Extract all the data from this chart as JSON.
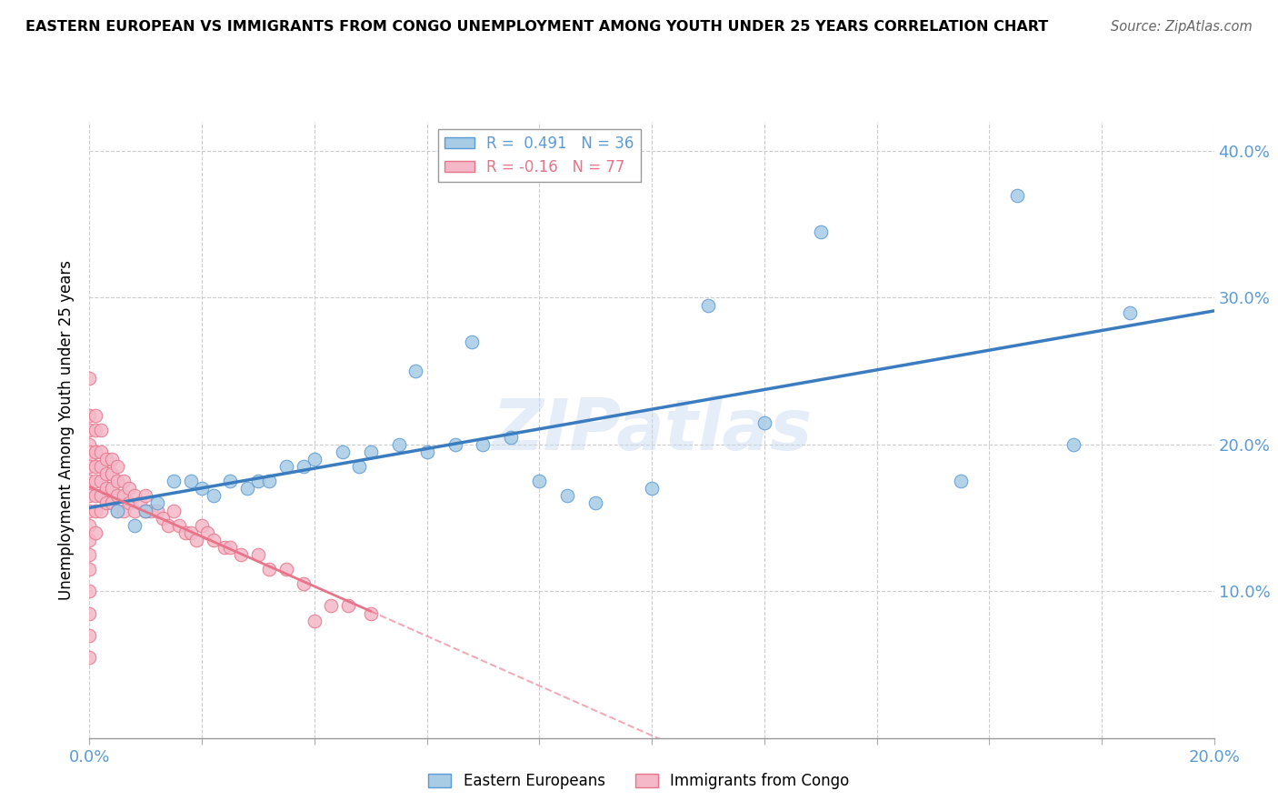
{
  "title": "EASTERN EUROPEAN VS IMMIGRANTS FROM CONGO UNEMPLOYMENT AMONG YOUTH UNDER 25 YEARS CORRELATION CHART",
  "source": "Source: ZipAtlas.com",
  "ylabel": "Unemployment Among Youth under 25 years",
  "xlim": [
    0.0,
    0.2
  ],
  "ylim": [
    0.0,
    0.42
  ],
  "blue_R": 0.491,
  "blue_N": 36,
  "pink_R": -0.16,
  "pink_N": 77,
  "blue_color": "#a8cce4",
  "pink_color": "#f4b8c8",
  "blue_edge_color": "#5b9bd5",
  "pink_edge_color": "#e8748a",
  "blue_line_color": "#3a7cbf",
  "pink_line_color": "#e8748a",
  "watermark": "ZIPatlas",
  "tick_color": "#5b9bd5",
  "blue_scatter_x": [
    0.005,
    0.008,
    0.01,
    0.012,
    0.015,
    0.018,
    0.02,
    0.022,
    0.025,
    0.028,
    0.03,
    0.032,
    0.035,
    0.038,
    0.04,
    0.045,
    0.048,
    0.05,
    0.055,
    0.058,
    0.06,
    0.065,
    0.068,
    0.07,
    0.075,
    0.08,
    0.085,
    0.09,
    0.1,
    0.11,
    0.12,
    0.13,
    0.155,
    0.165,
    0.175,
    0.185
  ],
  "blue_scatter_y": [
    0.155,
    0.145,
    0.155,
    0.16,
    0.175,
    0.175,
    0.17,
    0.165,
    0.175,
    0.17,
    0.175,
    0.175,
    0.185,
    0.185,
    0.19,
    0.195,
    0.185,
    0.195,
    0.2,
    0.25,
    0.195,
    0.2,
    0.27,
    0.2,
    0.205,
    0.175,
    0.165,
    0.16,
    0.17,
    0.295,
    0.215,
    0.345,
    0.175,
    0.37,
    0.2,
    0.29
  ],
  "pink_scatter_x": [
    0.0,
    0.0,
    0.0,
    0.0,
    0.0,
    0.0,
    0.0,
    0.0,
    0.0,
    0.0,
    0.0,
    0.0,
    0.0,
    0.0,
    0.0,
    0.0,
    0.0,
    0.0,
    0.001,
    0.001,
    0.001,
    0.001,
    0.001,
    0.001,
    0.001,
    0.001,
    0.002,
    0.002,
    0.002,
    0.002,
    0.002,
    0.002,
    0.003,
    0.003,
    0.003,
    0.003,
    0.004,
    0.004,
    0.004,
    0.004,
    0.005,
    0.005,
    0.005,
    0.005,
    0.006,
    0.006,
    0.006,
    0.007,
    0.007,
    0.008,
    0.008,
    0.009,
    0.01,
    0.01,
    0.011,
    0.012,
    0.013,
    0.014,
    0.015,
    0.016,
    0.017,
    0.018,
    0.019,
    0.02,
    0.021,
    0.022,
    0.024,
    0.025,
    0.027,
    0.03,
    0.032,
    0.035,
    0.038,
    0.04,
    0.043,
    0.046,
    0.05
  ],
  "pink_scatter_y": [
    0.245,
    0.22,
    0.21,
    0.2,
    0.195,
    0.19,
    0.185,
    0.175,
    0.165,
    0.155,
    0.145,
    0.135,
    0.125,
    0.115,
    0.1,
    0.085,
    0.07,
    0.055,
    0.22,
    0.21,
    0.195,
    0.185,
    0.175,
    0.165,
    0.155,
    0.14,
    0.21,
    0.195,
    0.185,
    0.175,
    0.165,
    0.155,
    0.19,
    0.18,
    0.17,
    0.16,
    0.19,
    0.18,
    0.17,
    0.16,
    0.185,
    0.175,
    0.165,
    0.155,
    0.175,
    0.165,
    0.155,
    0.17,
    0.16,
    0.165,
    0.155,
    0.16,
    0.165,
    0.155,
    0.155,
    0.155,
    0.15,
    0.145,
    0.155,
    0.145,
    0.14,
    0.14,
    0.135,
    0.145,
    0.14,
    0.135,
    0.13,
    0.13,
    0.125,
    0.125,
    0.115,
    0.115,
    0.105,
    0.08,
    0.09,
    0.09,
    0.085
  ]
}
